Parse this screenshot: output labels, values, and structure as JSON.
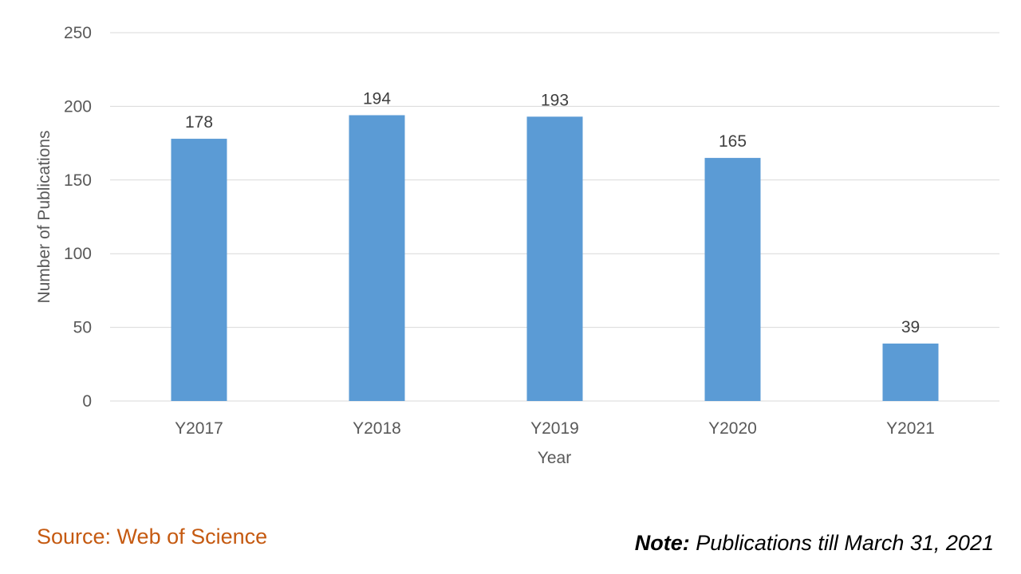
{
  "chart_data": {
    "type": "bar",
    "categories": [
      "Y2017",
      "Y2018",
      "Y2019",
      "Y2020",
      "Y2021"
    ],
    "values": [
      178,
      194,
      193,
      165,
      39
    ],
    "data_labels": [
      "178",
      "194",
      "193",
      "165",
      "39"
    ],
    "xlabel": "Year",
    "ylabel": "Number of Publications",
    "ylim": [
      0,
      250
    ],
    "yticks": [
      0,
      50,
      100,
      150,
      200,
      250
    ],
    "grid": true,
    "legend": "none",
    "bar_color": "#5b9bd5",
    "grid_color": "#d9d9d9"
  },
  "footer": {
    "source": "Source: Web of Science",
    "note_label": "Note:",
    "note_text": " Publications till March 31, 2021",
    "source_color": "#c55a11"
  }
}
